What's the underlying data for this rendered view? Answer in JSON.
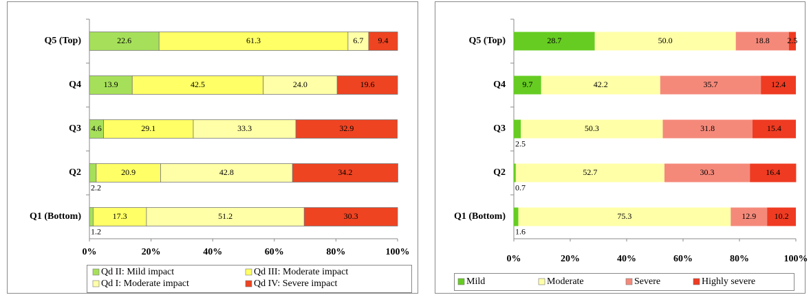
{
  "chart_data": [
    {
      "type": "stacked-bar-horizontal",
      "categories": [
        "Q5 (Top)",
        "Q4",
        "Q3",
        "Q2",
        "Q1 (Bottom)"
      ],
      "series": [
        {
          "name": "Qd II: Mild impact",
          "color": "#A6E05A",
          "values": [
            22.6,
            13.9,
            4.6,
            2.2,
            1.2
          ]
        },
        {
          "name": "Qd III: Moderate impact",
          "color": "#FFFF66",
          "values": [
            61.3,
            42.5,
            29.1,
            20.9,
            17.3
          ]
        },
        {
          "name": "Qd I: Moderate impact",
          "color": "#FFFFA8",
          "values": [
            6.7,
            24.0,
            33.3,
            42.8,
            51.2
          ],
          "value_labels": [
            "6.7",
            "24.0",
            "33.3",
            "42.8",
            "51.2"
          ]
        },
        {
          "name": "Qd IV: Severe impact",
          "color": "#EE4422",
          "values": [
            9.4,
            19.6,
            32.9,
            34.2,
            30.3
          ]
        }
      ],
      "xlim": [
        0,
        100
      ],
      "xticks": [
        {
          "value": 0,
          "label": "0%"
        },
        {
          "value": 20,
          "label": "20%"
        },
        {
          "value": 40,
          "label": "40%"
        },
        {
          "value": 60,
          "label": "60%"
        },
        {
          "value": 80,
          "label": "80%"
        },
        {
          "value": 100,
          "label": "100%"
        }
      ]
    },
    {
      "type": "stacked-bar-horizontal",
      "categories": [
        "Q5 (Top)",
        "Q4",
        "Q3",
        "Q2",
        "Q1 (Bottom)"
      ],
      "series": [
        {
          "name": "Mild",
          "color": "#66CC22",
          "values": [
            28.7,
            9.7,
            2.5,
            0.7,
            1.6
          ]
        },
        {
          "name": "Moderate",
          "color": "#FFFFA8",
          "values": [
            50.0,
            42.2,
            50.3,
            52.7,
            75.3
          ],
          "value_labels": [
            "50.0",
            "42.2",
            "50.3",
            "52.7",
            "75.3"
          ]
        },
        {
          "name": "Severe",
          "color": "#F4897A",
          "values": [
            18.8,
            35.7,
            31.8,
            30.3,
            12.9
          ]
        },
        {
          "name": "Highly severe",
          "color": "#EE3B22",
          "values": [
            2.5,
            12.4,
            15.4,
            16.4,
            10.2
          ]
        }
      ],
      "xlim": [
        0,
        100
      ],
      "xticks": [
        {
          "value": 0,
          "label": "0%"
        },
        {
          "value": 20,
          "label": "20%"
        },
        {
          "value": 40,
          "label": "40%"
        },
        {
          "value": 60,
          "label": "60%"
        },
        {
          "value": 80,
          "label": "80%"
        },
        {
          "value": 100,
          "label": "100%"
        }
      ]
    }
  ]
}
